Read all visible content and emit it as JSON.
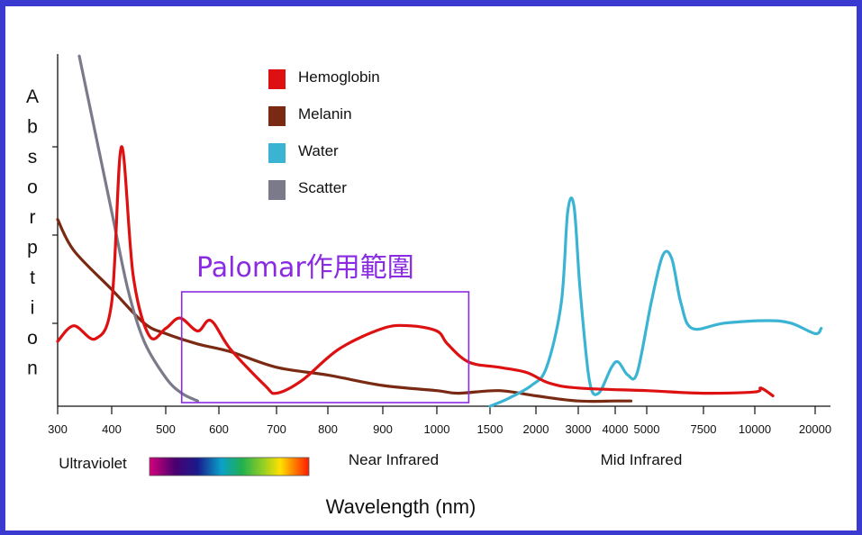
{
  "chart_data": {
    "type": "line",
    "title": "",
    "xlabel": "Wavelength (nm)",
    "ylabel": "Absorption",
    "x_scale": "non-uniform",
    "x_ticks": [
      "300",
      "400",
      "500",
      "600",
      "700",
      "800",
      "900",
      "1000",
      "1500",
      "2000",
      "3000",
      "4000",
      "5000",
      "7500",
      "10000",
      "20000"
    ],
    "ylim_relative": [
      0,
      1
    ],
    "grid": false,
    "legend_position": "top-center",
    "spectral_bands": [
      "Ultraviolet",
      "Near Infrared",
      "Mid Infrared"
    ],
    "annotation": {
      "text": "Palomar作用範圍",
      "x_range": [
        530,
        1300
      ]
    },
    "series": [
      {
        "name": "Hemoglobin",
        "color": "#dd1111",
        "points": [
          [
            300,
            0.25
          ],
          [
            330,
            0.31
          ],
          [
            370,
            0.26
          ],
          [
            400,
            0.4
          ],
          [
            418,
            1.0
          ],
          [
            440,
            0.5
          ],
          [
            470,
            0.27
          ],
          [
            500,
            0.3
          ],
          [
            527,
            0.34
          ],
          [
            560,
            0.29
          ],
          [
            585,
            0.33
          ],
          [
            620,
            0.22
          ],
          [
            680,
            0.08
          ],
          [
            700,
            0.05
          ],
          [
            750,
            0.1
          ],
          [
            820,
            0.22
          ],
          [
            900,
            0.3
          ],
          [
            950,
            0.31
          ],
          [
            1000,
            0.29
          ],
          [
            1100,
            0.24
          ],
          [
            1300,
            0.17
          ],
          [
            1600,
            0.15
          ],
          [
            1900,
            0.13
          ],
          [
            2300,
            0.09
          ],
          [
            3000,
            0.07
          ],
          [
            5000,
            0.06
          ],
          [
            7500,
            0.05
          ],
          [
            10000,
            0.055
          ],
          [
            11000,
            0.07
          ],
          [
            13000,
            0.04
          ]
        ]
      },
      {
        "name": "Melanin",
        "color": "#7a2a12",
        "points": [
          [
            300,
            0.72
          ],
          [
            330,
            0.6
          ],
          [
            400,
            0.45
          ],
          [
            460,
            0.32
          ],
          [
            500,
            0.28
          ],
          [
            560,
            0.24
          ],
          [
            620,
            0.21
          ],
          [
            700,
            0.15
          ],
          [
            800,
            0.12
          ],
          [
            900,
            0.08
          ],
          [
            1000,
            0.06
          ],
          [
            1200,
            0.05
          ],
          [
            1600,
            0.06
          ],
          [
            2000,
            0.04
          ],
          [
            3000,
            0.02
          ],
          [
            4000,
            0.02
          ],
          [
            4500,
            0.02
          ]
        ]
      },
      {
        "name": "Water",
        "color": "#3bb4d4",
        "points": [
          [
            1500,
            0.0
          ],
          [
            1700,
            0.03
          ],
          [
            1950,
            0.08
          ],
          [
            2250,
            0.15
          ],
          [
            2600,
            0.4
          ],
          [
            2750,
            0.75
          ],
          [
            2900,
            0.77
          ],
          [
            3050,
            0.45
          ],
          [
            3300,
            0.1
          ],
          [
            3550,
            0.05
          ],
          [
            3900,
            0.15
          ],
          [
            4100,
            0.17
          ],
          [
            4400,
            0.12
          ],
          [
            4700,
            0.13
          ],
          [
            5200,
            0.4
          ],
          [
            5700,
            0.58
          ],
          [
            6100,
            0.57
          ],
          [
            6500,
            0.4
          ],
          [
            7000,
            0.3
          ],
          [
            8500,
            0.32
          ],
          [
            12000,
            0.33
          ],
          [
            16000,
            0.32
          ],
          [
            20000,
            0.28
          ],
          [
            21000,
            0.3
          ]
        ]
      },
      {
        "name": "Scatter",
        "color": "#7a7a8a",
        "points": [
          [
            340,
            1.35
          ],
          [
            370,
            1.05
          ],
          [
            400,
            0.75
          ],
          [
            430,
            0.45
          ],
          [
            460,
            0.25
          ],
          [
            500,
            0.11
          ],
          [
            530,
            0.05
          ],
          [
            560,
            0.02
          ]
        ]
      }
    ]
  }
}
